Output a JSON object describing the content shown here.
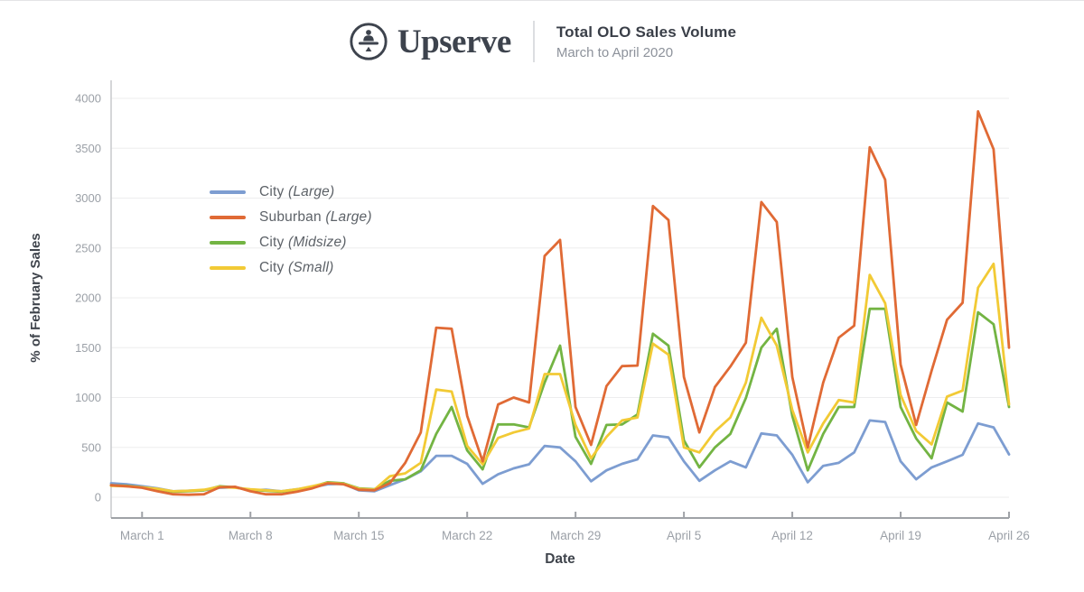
{
  "header": {
    "brand": "Upserve",
    "title": "Total OLO Sales Volume",
    "subtitle": "March to April 2020"
  },
  "chart_data": {
    "type": "line",
    "title": "Total OLO Sales Volume",
    "subtitle": "March to April 2020",
    "xlabel": "Date",
    "ylabel": "% of February Sales",
    "ylim": [
      0,
      4000
    ],
    "ytick_step": 500,
    "ytick_labels": [
      "0",
      "500",
      "1000",
      "1500",
      "2000",
      "2500",
      "3000",
      "3500",
      "4000"
    ],
    "grid": "horizontal",
    "legend_position": "inside-top-left",
    "x": [
      "Feb 28",
      "Feb 29",
      "March 1",
      "March 2",
      "March 3",
      "March 4",
      "March 5",
      "March 6",
      "March 7",
      "March 8",
      "March 9",
      "March 10",
      "March 11",
      "March 12",
      "March 13",
      "March 14",
      "March 15",
      "March 16",
      "March 17",
      "March 18",
      "March 19",
      "March 20",
      "March 21",
      "March 22",
      "March 23",
      "March 24",
      "March 25",
      "March 26",
      "March 27",
      "March 28",
      "March 29",
      "March 30",
      "March 31",
      "April 1",
      "April 2",
      "April 3",
      "April 4",
      "April 5",
      "April 6",
      "April 7",
      "April 8",
      "April 9",
      "April 10",
      "April 11",
      "April 12",
      "April 13",
      "April 14",
      "April 15",
      "April 16",
      "April 17",
      "April 18",
      "April 19",
      "April 20",
      "April 21",
      "April 22",
      "April 23",
      "April 24",
      "April 25",
      "April 26"
    ],
    "xtick_labels": [
      "March 1",
      "March 8",
      "March 15",
      "March 22",
      "March 29",
      "April 5",
      "April 12",
      "April 19",
      "April 26"
    ],
    "xtick_indices": [
      2,
      9,
      16,
      23,
      30,
      37,
      44,
      51,
      58
    ],
    "series": [
      {
        "name": "City (Large)",
        "legend_main": "City",
        "legend_paren": "(Large)",
        "color": "#7d9dd1",
        "values": [
          140,
          130,
          110,
          90,
          60,
          65,
          70,
          95,
          100,
          70,
          75,
          60,
          80,
          100,
          130,
          135,
          70,
          60,
          120,
          180,
          260,
          415,
          415,
          335,
          135,
          230,
          290,
          330,
          515,
          500,
          360,
          160,
          270,
          335,
          380,
          620,
          600,
          360,
          165,
          270,
          360,
          300,
          640,
          620,
          425,
          150,
          315,
          345,
          450,
          770,
          755,
          360,
          180,
          300,
          360,
          425,
          740,
          700,
          430
        ]
      },
      {
        "name": "Suburban (Large)",
        "legend_main": "Suburban",
        "legend_paren": "(Large)",
        "color": "#e06a35",
        "values": [
          120,
          110,
          95,
          60,
          30,
          25,
          30,
          100,
          105,
          60,
          30,
          30,
          55,
          90,
          140,
          130,
          75,
          70,
          140,
          345,
          650,
          1700,
          1690,
          815,
          360,
          930,
          1000,
          950,
          2420,
          2580,
          905,
          525,
          1115,
          1315,
          1320,
          2920,
          2780,
          1205,
          650,
          1105,
          1310,
          1550,
          2960,
          2760,
          1205,
          500,
          1150,
          1600,
          1720,
          3510,
          3185,
          1330,
          725,
          1270,
          1780,
          1950,
          3870,
          3490,
          1500
        ]
      },
      {
        "name": "City (Midsize)",
        "legend_main": "City",
        "legend_paren": "(Midsize)",
        "color": "#73b443",
        "values": [
          120,
          115,
          100,
          80,
          55,
          60,
          70,
          110,
          100,
          75,
          65,
          55,
          75,
          105,
          150,
          140,
          90,
          80,
          165,
          180,
          270,
          635,
          905,
          470,
          280,
          730,
          730,
          700,
          1150,
          1520,
          605,
          335,
          725,
          730,
          830,
          1640,
          1520,
          570,
          300,
          500,
          635,
          995,
          1500,
          1690,
          815,
          270,
          635,
          905,
          905,
          1890,
          1890,
          905,
          590,
          390,
          950,
          860,
          1855,
          1735,
          905
        ]
      },
      {
        "name": "City (Small)",
        "legend_main": "City",
        "legend_paren": "(Small)",
        "color": "#f2ca35",
        "values": [
          115,
          110,
          100,
          85,
          60,
          65,
          75,
          105,
          95,
          80,
          70,
          60,
          80,
          110,
          145,
          135,
          85,
          75,
          210,
          240,
          345,
          1080,
          1060,
          515,
          330,
          595,
          650,
          690,
          1235,
          1235,
          725,
          390,
          605,
          770,
          800,
          1540,
          1430,
          500,
          450,
          660,
          800,
          1150,
          1800,
          1520,
          875,
          450,
          740,
          975,
          950,
          2230,
          1945,
          1025,
          665,
          530,
          1010,
          1070,
          2100,
          2340,
          930
        ]
      }
    ],
    "draw_order": [
      0,
      2,
      3,
      1
    ],
    "colors": {
      "axis_text": "#9ba0a7",
      "axis_title": "#3f444c",
      "gridline": "#ededee",
      "spine": "#c7c9cc",
      "axis_line": "#9fa2a7"
    }
  }
}
